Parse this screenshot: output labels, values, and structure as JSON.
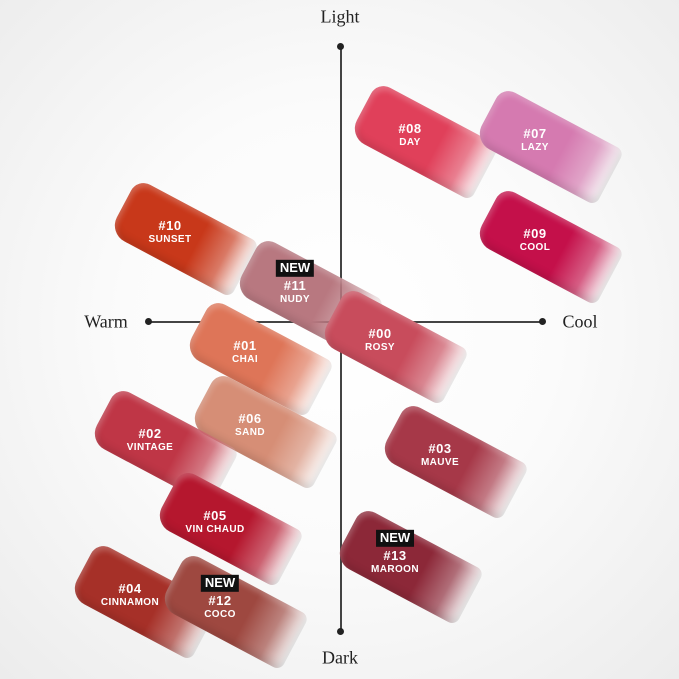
{
  "axes": {
    "top": "Light",
    "bottom": "Dark",
    "left": "Warm",
    "right": "Cool"
  },
  "new_label": "NEW",
  "swatches": [
    {
      "code": "#08",
      "name": "DAY",
      "color": "#e0405a",
      "is_new": false
    },
    {
      "code": "#07",
      "name": "LAZY",
      "color": "#d57ab0",
      "is_new": false
    },
    {
      "code": "#10",
      "name": "SUNSET",
      "color": "#c8381a",
      "is_new": false
    },
    {
      "code": "#09",
      "name": "COOL",
      "color": "#c4104a",
      "is_new": false
    },
    {
      "code": "#11",
      "name": "NUDY",
      "color": "#b87880",
      "is_new": true
    },
    {
      "code": "#00",
      "name": "ROSY",
      "color": "#c84c5c",
      "is_new": false
    },
    {
      "code": "#01",
      "name": "CHAI",
      "color": "#de7558",
      "is_new": false
    },
    {
      "code": "#06",
      "name": "SAND",
      "color": "#d68e76",
      "is_new": false
    },
    {
      "code": "#02",
      "name": "VINTAGE",
      "color": "#bf3646",
      "is_new": false
    },
    {
      "code": "#03",
      "name": "MAUVE",
      "color": "#a63848",
      "is_new": false
    },
    {
      "code": "#05",
      "name": "VIN CHAUD",
      "color": "#b5172e",
      "is_new": false
    },
    {
      "code": "#13",
      "name": "MAROON",
      "color": "#8c2838",
      "is_new": true
    },
    {
      "code": "#04",
      "name": "CINNAMON",
      "color": "#a63028",
      "is_new": false
    },
    {
      "code": "#12",
      "name": "COCO",
      "color": "#9e4840",
      "is_new": true
    }
  ]
}
